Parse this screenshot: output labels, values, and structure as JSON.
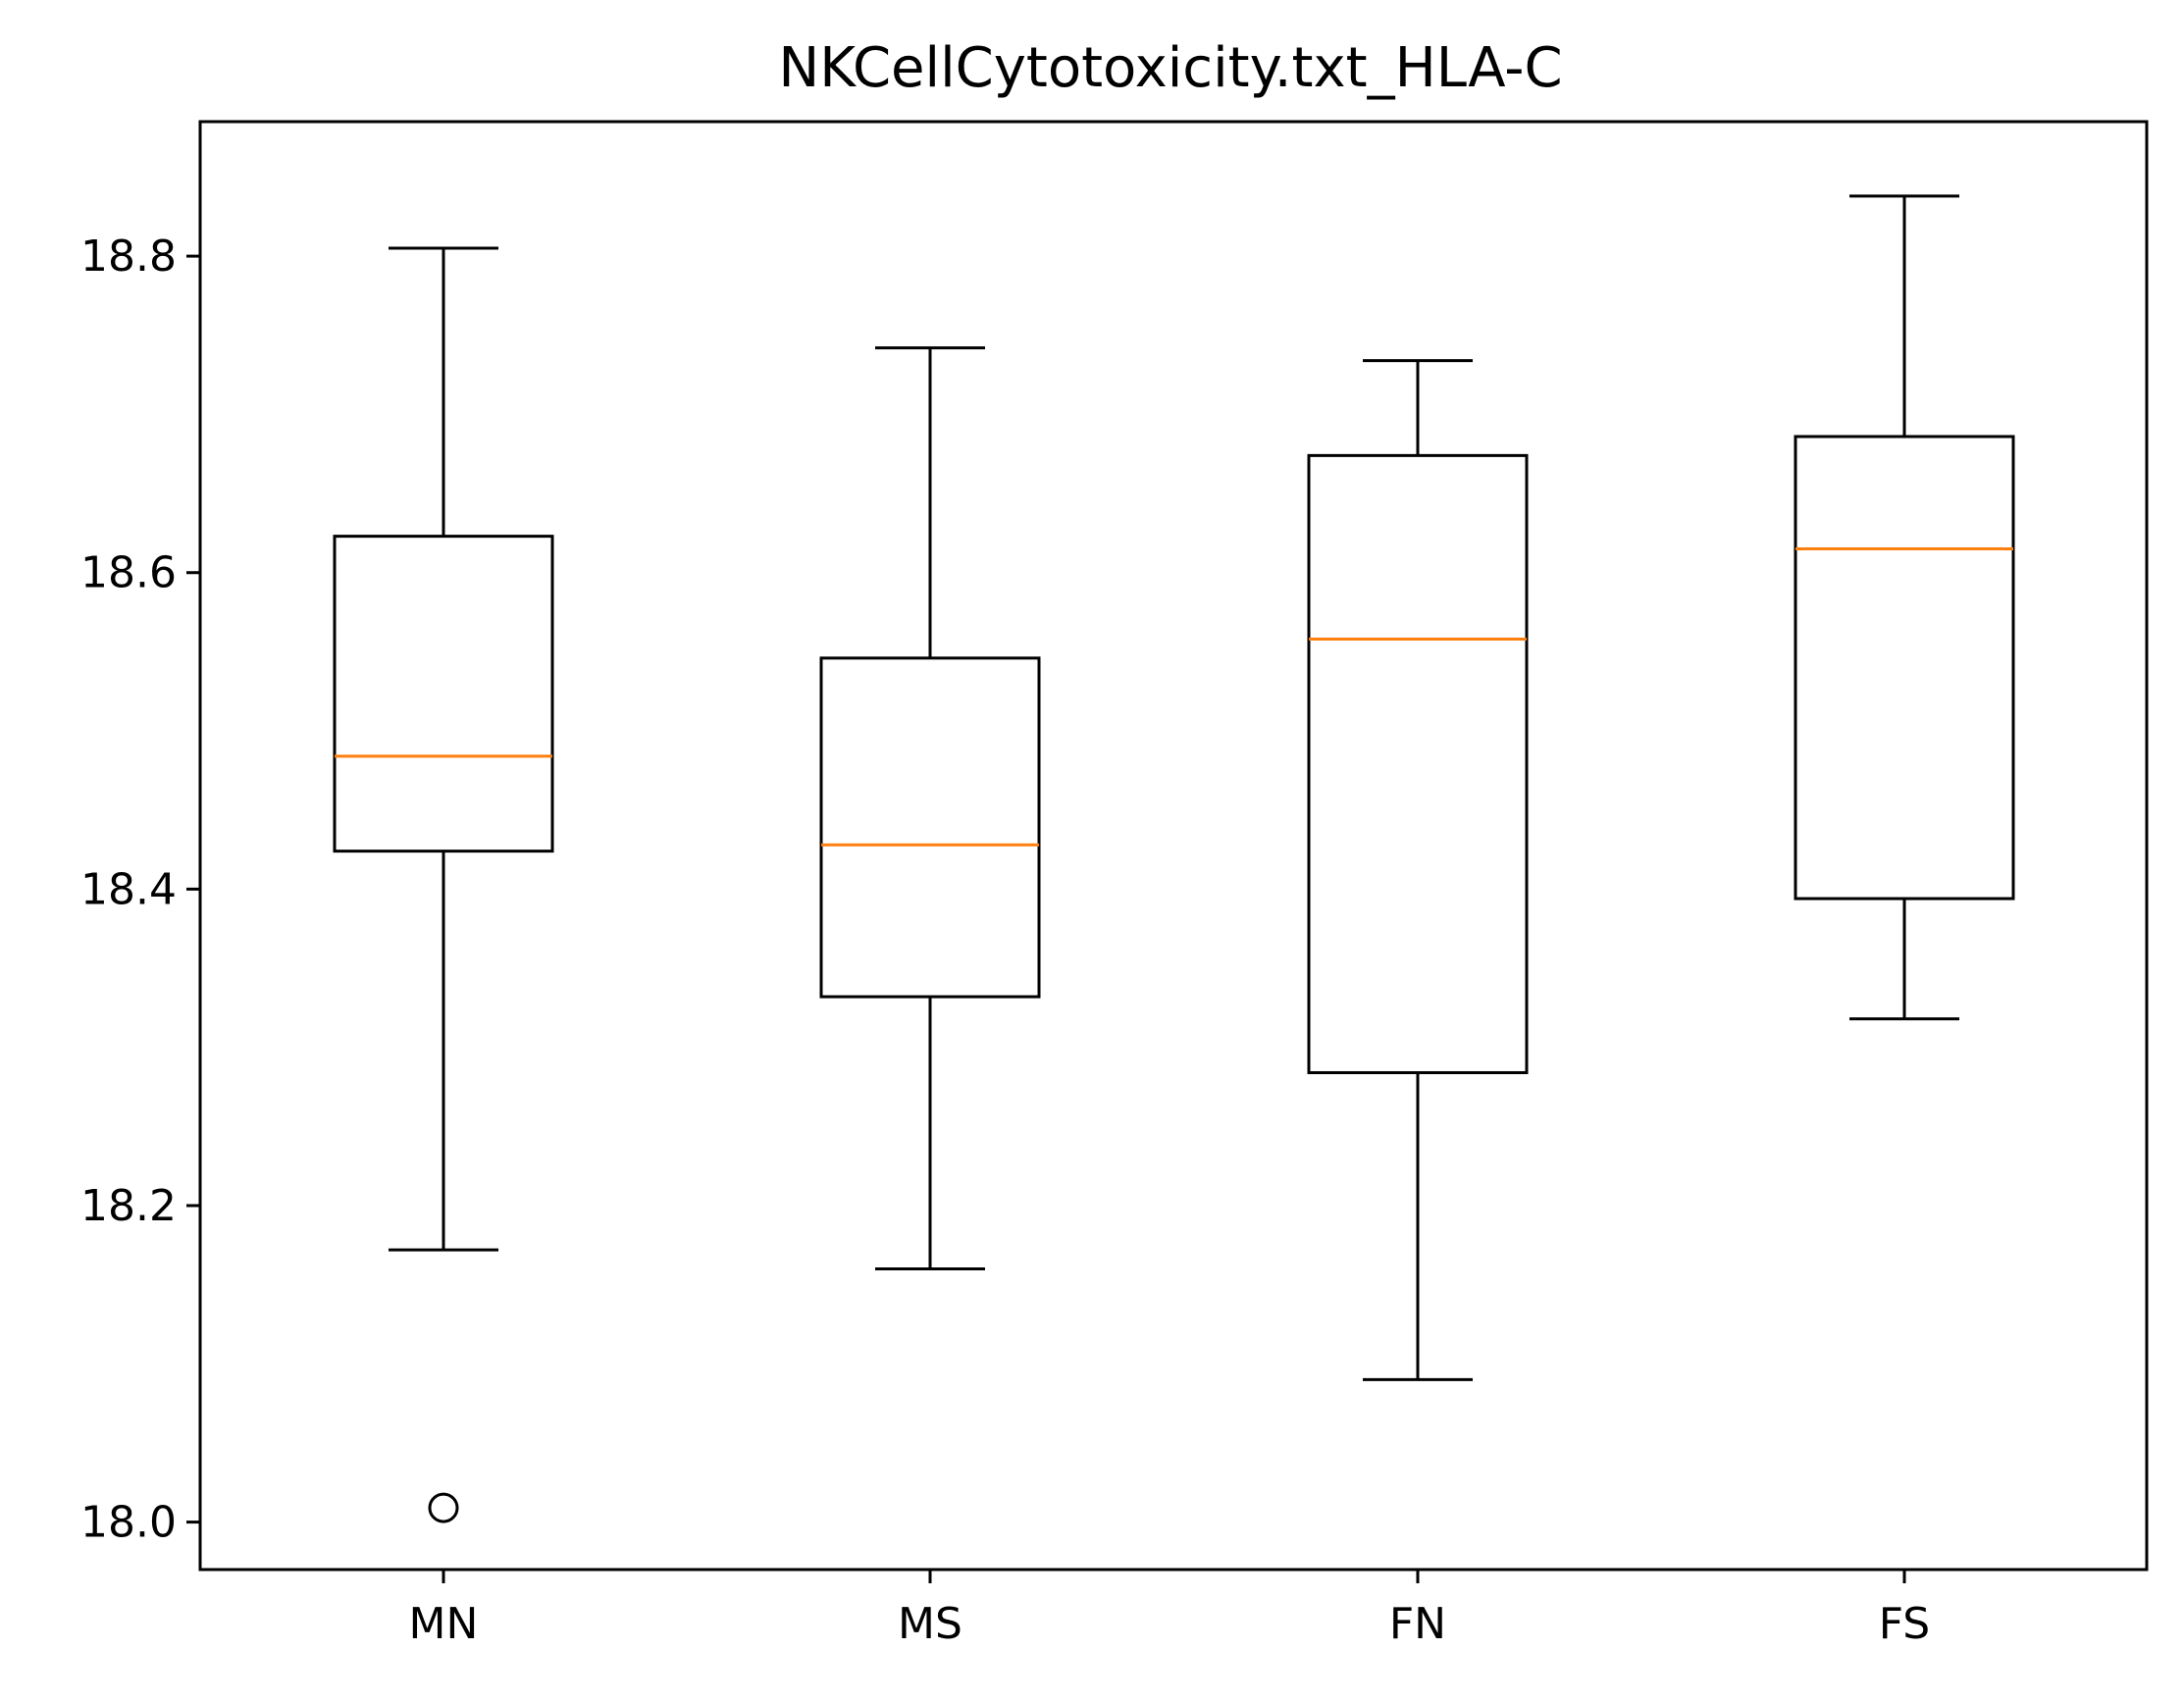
{
  "chart_data": {
    "type": "box",
    "title": "NKCellCytotoxicity.txt_HLA-C",
    "xlabel": "",
    "ylabel": "",
    "categories": [
      "MN",
      "MS",
      "FN",
      "FS"
    ],
    "ylim": [
      17.97,
      18.885
    ],
    "yticks": [
      18.0,
      18.2,
      18.4,
      18.6,
      18.8
    ],
    "ytick_labels": [
      "18.0",
      "18.2",
      "18.4",
      "18.6",
      "18.8"
    ],
    "grid": false,
    "boxes": [
      {
        "category": "MN",
        "whisker_low": 18.172,
        "q1": 18.424,
        "median": 18.484,
        "q3": 18.623,
        "whisker_high": 18.805,
        "outliers": [
          18.009
        ]
      },
      {
        "category": "MS",
        "whisker_low": 18.16,
        "q1": 18.332,
        "median": 18.428,
        "q3": 18.546,
        "whisker_high": 18.742,
        "outliers": []
      },
      {
        "category": "FN",
        "whisker_low": 18.09,
        "q1": 18.284,
        "median": 18.558,
        "q3": 18.674,
        "whisker_high": 18.734,
        "outliers": []
      },
      {
        "category": "FS",
        "whisker_low": 18.318,
        "q1": 18.394,
        "median": 18.615,
        "q3": 18.686,
        "whisker_high": 18.838,
        "outliers": []
      }
    ],
    "colors": {
      "box": "#000000",
      "median": "#ff7f0e",
      "background": "#ffffff"
    }
  }
}
